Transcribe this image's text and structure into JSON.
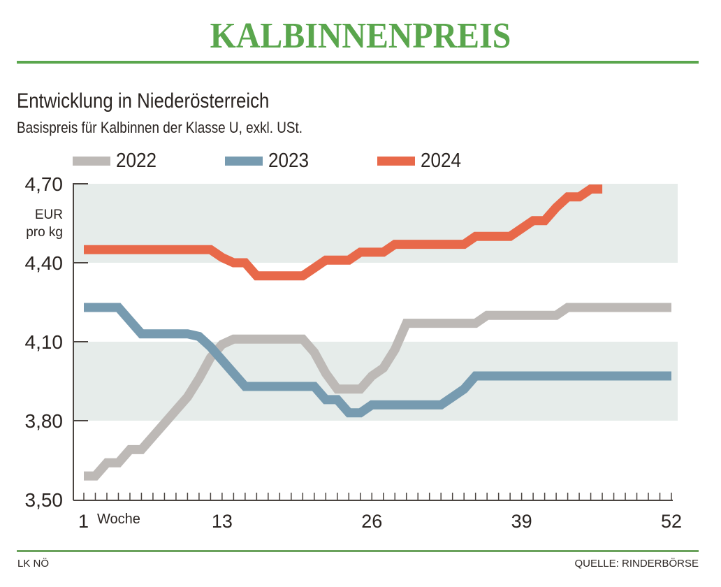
{
  "header": {
    "title": "KALBINNENPREIS",
    "subtitle": "Entwicklung in Niederösterreich",
    "description": "Basispreis für Kalbinnen der Klasse U, exkl. USt."
  },
  "footer": {
    "left": "LK NÖ",
    "right": "QUELLE: RINDERBÖRSE"
  },
  "colors": {
    "brand_green": "#5aa64d",
    "band": "#e6ecea",
    "axis": "#4a4440"
  },
  "chart_data": {
    "type": "line",
    "title": "KALBINNENPREIS",
    "subtitle": "Entwicklung in Niederösterreich – Basispreis für Kalbinnen der Klasse U, exkl. USt.",
    "xlabel": "Woche",
    "ylabel": "EUR pro kg",
    "ylabel_lines": [
      "EUR",
      "pro kg"
    ],
    "xlim": [
      1,
      52
    ],
    "ylim": [
      3.5,
      4.7
    ],
    "x_ticks": [
      1,
      13,
      26,
      39,
      52
    ],
    "x_tick_labels": [
      "1",
      "13",
      "26",
      "39",
      "52"
    ],
    "y_ticks": [
      3.5,
      3.8,
      4.1,
      4.4,
      4.7
    ],
    "y_tick_labels": [
      "3,50",
      "3,80",
      "4,10",
      "4,40",
      "4,70"
    ],
    "shaded_bands": [
      [
        3.8,
        4.1
      ],
      [
        4.4,
        4.7
      ]
    ],
    "grid": false,
    "legend_position": "top-left",
    "series": [
      {
        "name": "2022",
        "color": "#bdb9b6",
        "weeks": [
          1,
          2,
          3,
          4,
          5,
          6,
          7,
          8,
          9,
          10,
          11,
          12,
          13,
          14,
          15,
          16,
          17,
          18,
          19,
          20,
          21,
          22,
          23,
          24,
          25,
          26,
          27,
          28,
          29,
          30,
          31,
          32,
          33,
          34,
          35,
          36,
          37,
          38,
          39,
          40,
          41,
          42,
          43,
          44,
          45,
          46,
          47,
          48,
          49,
          50,
          51,
          52
        ],
        "values": [
          3.59,
          3.59,
          3.64,
          3.64,
          3.69,
          3.69,
          3.74,
          3.79,
          3.84,
          3.89,
          3.96,
          4.04,
          4.09,
          4.11,
          4.11,
          4.11,
          4.11,
          4.11,
          4.11,
          4.11,
          4.06,
          3.98,
          3.92,
          3.92,
          3.92,
          3.97,
          4.0,
          4.07,
          4.17,
          4.17,
          4.17,
          4.17,
          4.17,
          4.17,
          4.17,
          4.2,
          4.2,
          4.2,
          4.2,
          4.2,
          4.2,
          4.2,
          4.23,
          4.23,
          4.23,
          4.23,
          4.23,
          4.23,
          4.23,
          4.23,
          4.23,
          4.23
        ]
      },
      {
        "name": "2023",
        "color": "#779bb0",
        "weeks": [
          1,
          2,
          3,
          4,
          5,
          6,
          7,
          8,
          9,
          10,
          11,
          12,
          13,
          14,
          15,
          16,
          17,
          18,
          19,
          20,
          21,
          22,
          23,
          24,
          25,
          26,
          27,
          28,
          29,
          30,
          31,
          32,
          33,
          34,
          35,
          36,
          37,
          38,
          39,
          40,
          41,
          42,
          43,
          44,
          45,
          46,
          47,
          48,
          49,
          50,
          51,
          52
        ],
        "values": [
          4.23,
          4.23,
          4.23,
          4.23,
          4.18,
          4.13,
          4.13,
          4.13,
          4.13,
          4.13,
          4.12,
          4.08,
          4.03,
          3.98,
          3.93,
          3.93,
          3.93,
          3.93,
          3.93,
          3.93,
          3.93,
          3.88,
          3.88,
          3.83,
          3.83,
          3.86,
          3.86,
          3.86,
          3.86,
          3.86,
          3.86,
          3.86,
          3.89,
          3.92,
          3.97,
          3.97,
          3.97,
          3.97,
          3.97,
          3.97,
          3.97,
          3.97,
          3.97,
          3.97,
          3.97,
          3.97,
          3.97,
          3.97,
          3.97,
          3.97,
          3.97,
          3.97
        ]
      },
      {
        "name": "2024",
        "color": "#e8694a",
        "weeks": [
          1,
          2,
          3,
          4,
          5,
          6,
          7,
          8,
          9,
          10,
          11,
          12,
          13,
          14,
          15,
          16,
          17,
          18,
          19,
          20,
          21,
          22,
          23,
          24,
          25,
          26,
          27,
          28,
          29,
          30,
          31,
          32,
          33,
          34,
          35,
          36,
          37,
          38,
          39,
          40,
          41,
          42,
          43,
          44,
          45,
          46
        ],
        "values": [
          4.45,
          4.45,
          4.45,
          4.45,
          4.45,
          4.45,
          4.45,
          4.45,
          4.45,
          4.45,
          4.45,
          4.45,
          4.42,
          4.4,
          4.4,
          4.35,
          4.35,
          4.35,
          4.35,
          4.35,
          4.38,
          4.41,
          4.41,
          4.41,
          4.44,
          4.44,
          4.44,
          4.47,
          4.47,
          4.47,
          4.47,
          4.47,
          4.47,
          4.47,
          4.5,
          4.5,
          4.5,
          4.5,
          4.53,
          4.56,
          4.56,
          4.61,
          4.65,
          4.65,
          4.68,
          4.68
        ]
      }
    ]
  }
}
